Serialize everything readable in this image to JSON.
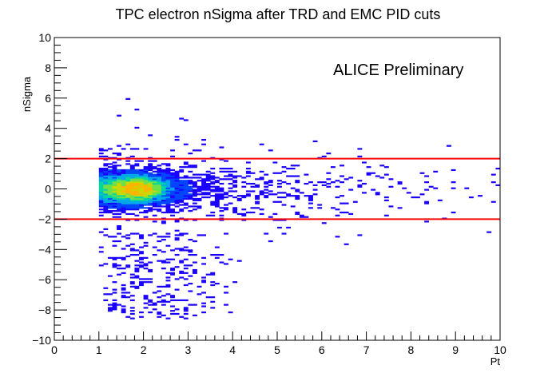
{
  "chart_data": {
    "type": "heatmap",
    "title": "TPC electron nSigma after TRD and EMC PID cuts",
    "xlabel": "Pt",
    "ylabel": "nSigma",
    "xlim": [
      0,
      10
    ],
    "ylim": [
      -10,
      10
    ],
    "x_ticks": [
      0,
      1,
      2,
      3,
      4,
      5,
      6,
      7,
      8,
      9,
      10
    ],
    "y_ticks": [
      -10,
      -8,
      -6,
      -4,
      -2,
      0,
      2,
      4,
      6,
      8,
      10
    ],
    "annotation": "ALICE Preliminary",
    "grid": false,
    "cut_lines": [
      {
        "y": 2,
        "color": "#ff0000"
      },
      {
        "y": -2,
        "color": "#ff0000"
      }
    ],
    "populated_x_range": [
      1,
      10
    ],
    "density_core": {
      "x": 1.9,
      "y": 0.0
    },
    "density_regions": [
      {
        "x_range": [
          1.0,
          4.5
        ],
        "y_range": [
          -2.0,
          2.0
        ],
        "level": "high"
      },
      {
        "x_range": [
          4.5,
          10.0
        ],
        "y_range": [
          -2.0,
          2.0
        ],
        "level": "low"
      },
      {
        "x_range": [
          1.0,
          4.0
        ],
        "y_range": [
          -8.5,
          -3.0
        ],
        "level": "low"
      },
      {
        "x_range": [
          1.0,
          5.0
        ],
        "y_range": [
          2.0,
          4.8
        ],
        "level": "low"
      }
    ],
    "colors": {
      "palette": [
        "#1a00ff",
        "#0045ff",
        "#00a8e8",
        "#00d6a0",
        "#6ee04a",
        "#c8d800",
        "#ffb400"
      ],
      "cut_line": "#ff0000",
      "axis": "#000000"
    }
  }
}
